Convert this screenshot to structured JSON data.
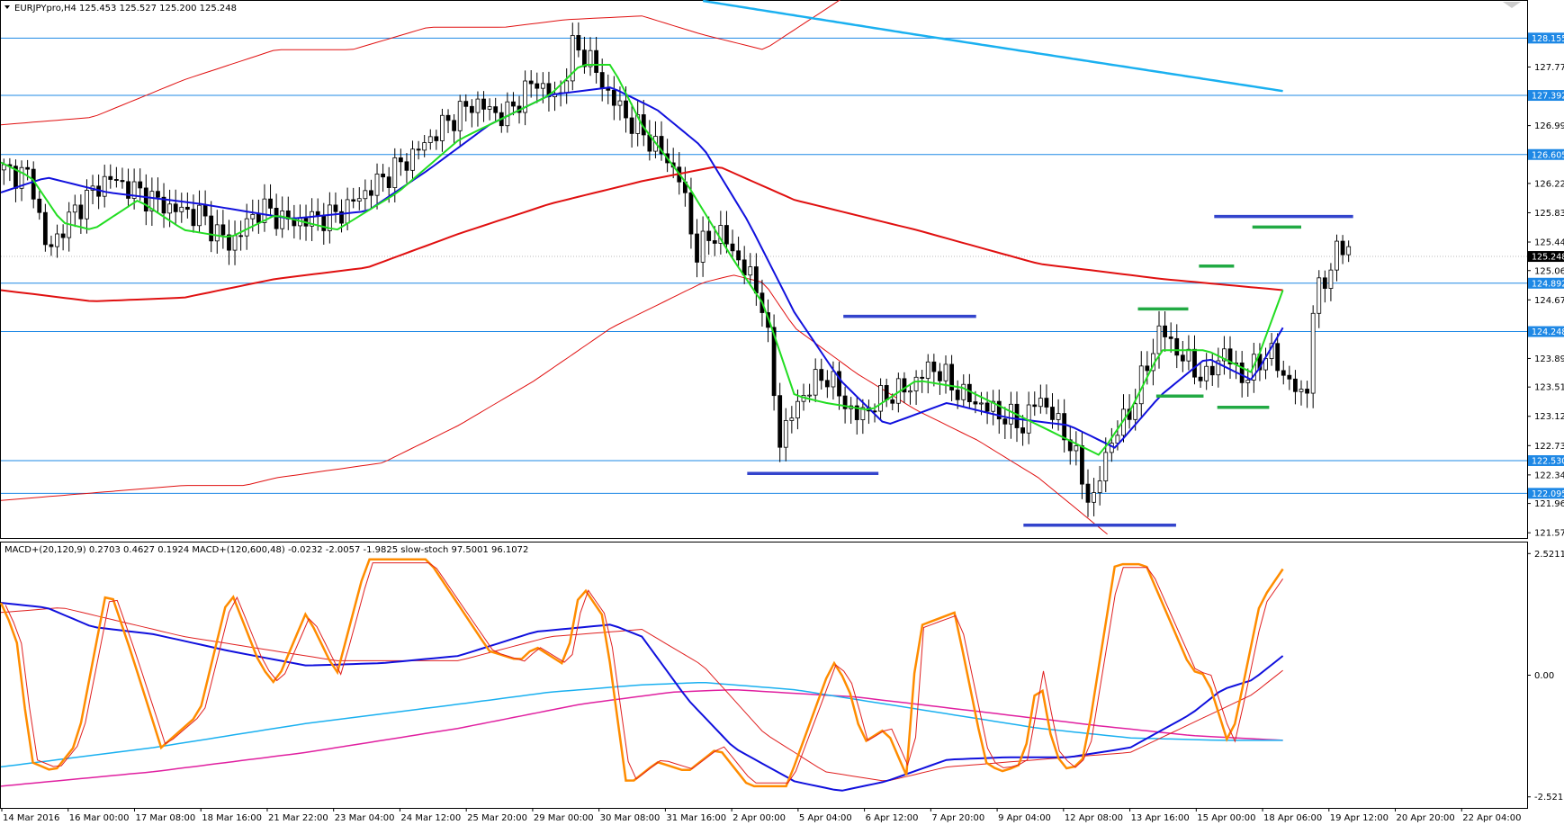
{
  "header": {
    "symbol_info": "EURJPYpro,H4  125.453 125.527 125.200 125.248",
    "indicator_info": "MACD+(20,120,9) 0.2703 0.4627 0.1924  MACD+(120,600,48) -0.0232 -2.0057 -1.9825  slow-stoch 97.5001 96.1072"
  },
  "chart_data": [
    {
      "type": "candlestick",
      "panel": "price",
      "ylim": [
        121.5,
        128.65
      ],
      "y_ticks": [
        "127.770",
        "126.990",
        "126.220",
        "125.830",
        "125.440",
        "125.060",
        "124.670",
        "123.890",
        "123.510",
        "123.120",
        "122.730",
        "122.340",
        "121.960",
        "121.570"
      ],
      "x_ticks": [
        "14 Mar 2016",
        "16 Mar 00:00",
        "17 Mar 08:00",
        "18 Mar 16:00",
        "21 Mar 22:00",
        "23 Mar 04:00",
        "24 Mar 12:00",
        "25 Mar 20:00",
        "29 Mar 00:00",
        "30 Mar 08:00",
        "31 Mar 16:00",
        "2 Apr 00:00",
        "5 Apr 04:00",
        "6 Apr 12:00",
        "7 Apr 20:00",
        "9 Apr 04:00",
        "12 Apr 08:00",
        "13 Apr 16:00",
        "15 Apr 00:00",
        "18 Apr 06:00",
        "19 Apr 12:00",
        "20 Apr 20:00",
        "22 Apr 04:00"
      ],
      "horizontal_levels": [
        {
          "price": "128.155",
          "color": "#1e88e5"
        },
        {
          "price": "127.392",
          "color": "#1e88e5"
        },
        {
          "price": "126.605",
          "color": "#1e88e5"
        },
        {
          "price": "124.892",
          "color": "#1e88e5"
        },
        {
          "price": "124.248",
          "color": "#1e88e5"
        },
        {
          "price": "122.530",
          "color": "#1e88e5"
        },
        {
          "price": "122.095",
          "color": "#1e88e5"
        }
      ],
      "current_price": "125.248",
      "series_colors": {
        "ema_fast": "#22dd22",
        "ema_mid": "#1111dd",
        "ema_slow": "#e01010",
        "bands": "#e01010",
        "trend": "#1ab0f0",
        "bull_candle": "#ffffff",
        "bear_candle": "#000000"
      }
    },
    {
      "type": "line",
      "panel": "oscillator",
      "ylim": [
        -2.75,
        2.75
      ],
      "y_ticks": [
        "2.5211",
        "0.00",
        "-2.5211"
      ],
      "series_colors": {
        "stoch_main": "#ff8c00",
        "stoch_signal": "#e02020",
        "macd_fast": "#1010dd",
        "macd_fast_signal": "#e02020",
        "macd_slow": "#1ab0f0",
        "macd_slow_signal": "#e020a0"
      }
    }
  ]
}
